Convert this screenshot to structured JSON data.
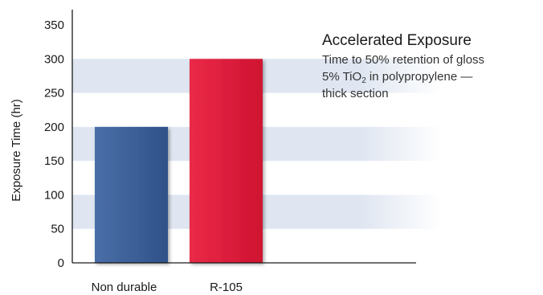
{
  "colors": {
    "band": "#dfe6f1",
    "axis": "#1a1a1a",
    "series_non_durable": "#3d6098",
    "series_r105": "#e21b3c"
  },
  "annotation": {
    "title": "Accelerated Exposure",
    "line1": "Time to 50% retention of gloss",
    "line2_prefix": "5% TiO",
    "line2_sub": "2",
    "line2_suffix": " in polypropylene —",
    "line3": "thick section"
  },
  "chart_data": {
    "type": "bar",
    "categories": [
      "Non durable",
      "R-105"
    ],
    "values": [
      200,
      300
    ],
    "title": "Accelerated Exposure",
    "xlabel": "",
    "ylabel": "Exposure Time (hr)",
    "ylim": [
      0,
      350
    ],
    "yticks": [
      0,
      50,
      100,
      150,
      200,
      250,
      300,
      350
    ],
    "bar_colors": [
      "#3d6098",
      "#e21b3c"
    ],
    "grid": "alternating horizontal bands",
    "legend": "none"
  }
}
